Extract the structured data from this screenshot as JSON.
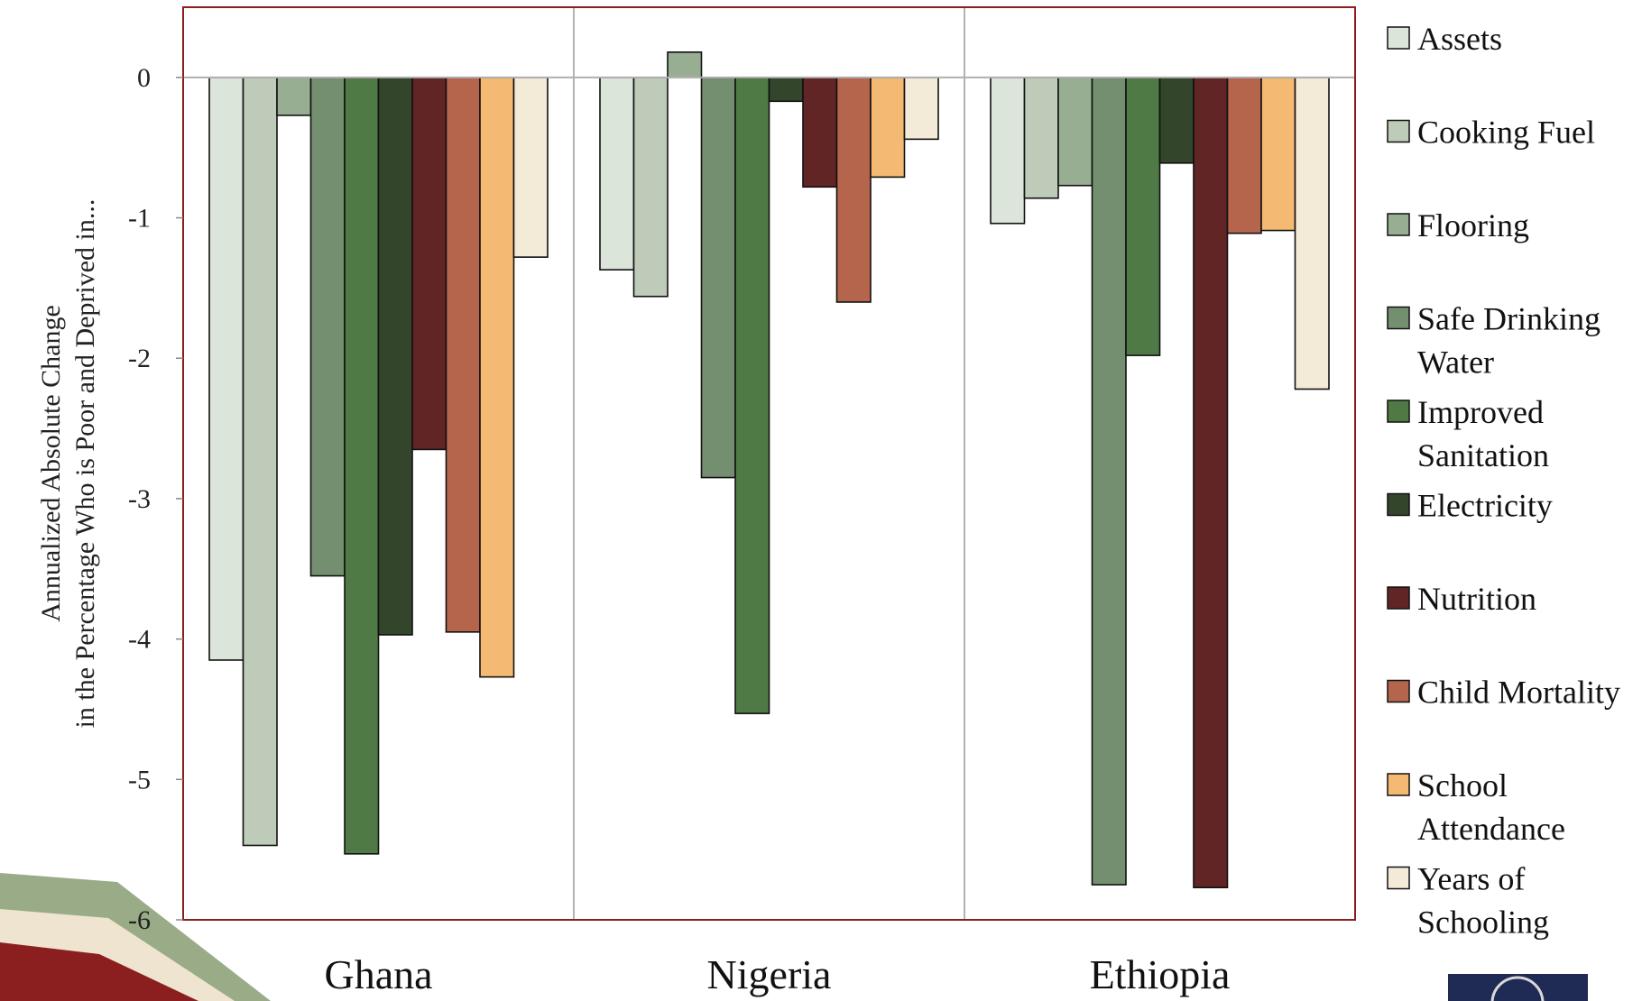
{
  "chart_data": {
    "type": "bar",
    "categories": [
      "Ghana",
      "Nigeria",
      "Ethiopia"
    ],
    "ylabel_lines": [
      "Annualized Absolute Change",
      "in the Percentage Who is Poor and Deprived in..."
    ],
    "ylim": [
      -6,
      0.5
    ],
    "yticks": [
      0,
      -1,
      -2,
      -3,
      -4,
      -5,
      -6
    ],
    "grid": false,
    "legend_position": "right",
    "series": [
      {
        "name": "Assets",
        "color": "#dbe5d9",
        "values": [
          -4.15,
          -1.37,
          -1.04
        ]
      },
      {
        "name": "Cooking Fuel",
        "color": "#bfcbb9",
        "values": [
          -5.47,
          -1.56,
          -0.86
        ]
      },
      {
        "name": "Flooring",
        "color": "#97ae92",
        "values": [
          -0.27,
          0.18,
          -0.77
        ]
      },
      {
        "name": "Safe Drinking Water",
        "color": "#748f6f",
        "values": [
          -3.55,
          -2.85,
          -5.75
        ]
      },
      {
        "name": "Improved Sanitation",
        "color": "#507a45",
        "values": [
          -5.53,
          -4.53,
          -1.98
        ]
      },
      {
        "name": "Electricity",
        "color": "#33462c",
        "values": [
          -3.97,
          -0.17,
          -0.61
        ]
      },
      {
        "name": "Nutrition",
        "color": "#622526",
        "values": [
          -2.65,
          -0.78,
          -5.77
        ]
      },
      {
        "name": "Child Mortality",
        "color": "#b6654d",
        "values": [
          -3.95,
          -1.6,
          -1.11
        ]
      },
      {
        "name": "School Attendance",
        "color": "#f4ba74",
        "values": [
          -4.27,
          -0.71,
          -1.09
        ]
      },
      {
        "name": "Years of Schooling",
        "color": "#f3ead8",
        "values": [
          -1.28,
          -0.44,
          -2.22
        ]
      }
    ],
    "legend_lines": [
      [
        "Assets"
      ],
      [
        "Cooking Fuel"
      ],
      [
        "Flooring"
      ],
      [
        "Safe Drinking",
        "Water"
      ],
      [
        "Improved",
        "Sanitation"
      ],
      [
        "Electricity"
      ],
      [
        "Nutrition"
      ],
      [
        "Child Mortality"
      ],
      [
        "School",
        "Attendance"
      ],
      [
        "Years of",
        "Schooling"
      ]
    ]
  },
  "colors": {
    "plot_border": "#8b1f1f",
    "separator": "#9a9a9a",
    "zero_line": "#b0b0b0",
    "decor_green": "#9aab87",
    "decor_cream": "#efe4cf",
    "decor_red": "#8b1f1f",
    "logo_navy": "#1f2a55"
  }
}
